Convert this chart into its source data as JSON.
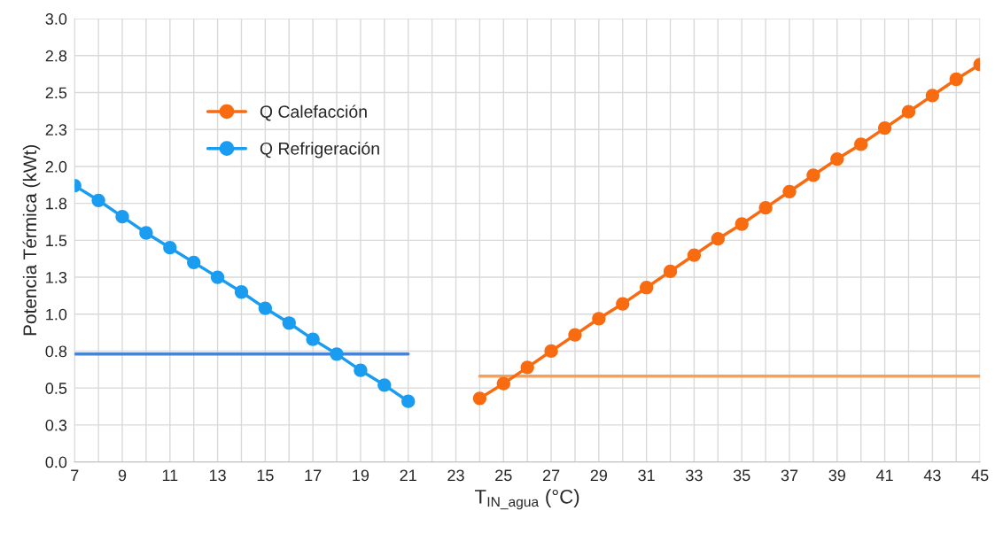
{
  "chart_data": {
    "type": "line",
    "xlabel": "T$_{IN_agua}$ (°C)",
    "ylabel": "Potencia Térmica (kWt)",
    "xlim": [
      7,
      45
    ],
    "ylim": [
      0,
      3
    ],
    "xticks": [
      7,
      {
        "value": 8,
        "label": null
      },
      9,
      {
        "value": 10,
        "label": null
      },
      11,
      {
        "value": 12,
        "label": null
      },
      13,
      {
        "value": 14,
        "label": null
      },
      15,
      {
        "value": 16,
        "label": null
      },
      17,
      {
        "value": 18,
        "label": null
      },
      19,
      {
        "value": 20,
        "label": null
      },
      21,
      {
        "value": 22,
        "label": null
      },
      23,
      {
        "value": 24,
        "label": null
      },
      25,
      {
        "value": 26,
        "label": null
      },
      27,
      {
        "value": 28,
        "label": null
      },
      29,
      {
        "value": 30,
        "label": null
      },
      31,
      {
        "value": 32,
        "label": null
      },
      33,
      {
        "value": 34,
        "label": null
      },
      35,
      {
        "value": 36,
        "label": null
      },
      37,
      {
        "value": 38,
        "label": null
      },
      39,
      {
        "value": 40,
        "label": null
      },
      41,
      {
        "value": 42,
        "label": null
      },
      43,
      {
        "value": 44,
        "label": null
      },
      45
    ],
    "yticks": [
      {
        "value": 0,
        "label": "0.0"
      },
      {
        "value": 0.25,
        "label": "0.3"
      },
      {
        "value": 0.5,
        "label": "0.5"
      },
      {
        "value": 0.75,
        "label": "0.8"
      },
      {
        "value": 1.0,
        "label": "1.0"
      },
      {
        "value": 1.25,
        "label": "1.3"
      },
      {
        "value": 1.5,
        "label": "1.5"
      },
      {
        "value": 1.75,
        "label": "1.8"
      },
      {
        "value": 2.0,
        "label": "2.0"
      },
      {
        "value": 2.25,
        "label": "2.3"
      },
      {
        "value": 2.5,
        "label": "2.5"
      },
      {
        "value": 2.75,
        "label": "2.8"
      },
      {
        "value": 3.0,
        "label": "3.0"
      }
    ],
    "grid": true,
    "legend": "top left",
    "series": [
      {
        "name": "Q Calefacción",
        "color": "#f96b10",
        "marker": "circle",
        "x": [
          24,
          25,
          26,
          27,
          28,
          29,
          30,
          31,
          32,
          33,
          34,
          35,
          36,
          37,
          38,
          39,
          40,
          41,
          42,
          43,
          44,
          45
        ],
        "values": [
          0.43,
          0.53,
          0.64,
          0.75,
          0.86,
          0.97,
          1.07,
          1.18,
          1.29,
          1.4,
          1.51,
          1.61,
          1.72,
          1.83,
          1.94,
          2.05,
          2.15,
          2.26,
          2.37,
          2.48,
          2.59,
          2.69
        ]
      },
      {
        "name": "Q Refrigeración",
        "color": "#1a9cf0",
        "marker": "circle",
        "x": [
          7,
          8,
          9,
          10,
          11,
          12,
          13,
          14,
          15,
          16,
          17,
          18,
          19,
          20,
          21
        ],
        "values": [
          1.87,
          1.77,
          1.66,
          1.55,
          1.45,
          1.35,
          1.25,
          1.15,
          1.04,
          0.94,
          0.83,
          0.73,
          0.62,
          0.52,
          0.41
        ]
      },
      {
        "color": "#4a82d4",
        "marker": "none",
        "x": [
          7,
          21
        ],
        "values": [
          0.73,
          0.73
        ]
      },
      {
        "color": "#f7a05a",
        "marker": "none",
        "x": [
          24,
          45
        ],
        "values": [
          0.58,
          0.58
        ]
      }
    ]
  }
}
